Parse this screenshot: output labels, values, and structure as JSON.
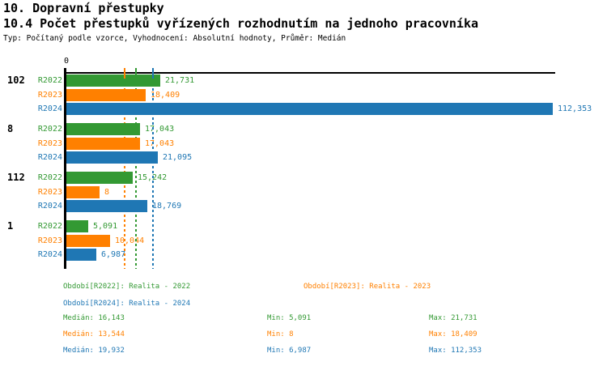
{
  "header": {
    "title": "10. Dopravní přestupky",
    "subtitle": "10.4 Počet přestupků vyřízených rozhodnutím na jednoho pracovníka",
    "meta": "Typ: Počítaný podle vzorce, Vyhodnocení: Absolutní hodnoty, Průměr: Medián"
  },
  "chart_data": {
    "type": "bar",
    "orientation": "horizontal",
    "x_axis": {
      "origin_label": "0",
      "min": 0,
      "max_value_shown": 112353,
      "gridlines": "median markers only"
    },
    "categories": [
      "102",
      "8",
      "112",
      "1"
    ],
    "series": [
      {
        "name": "R2022",
        "color": "#339933",
        "values": [
          21731,
          17043,
          15242,
          5091
        ],
        "labels": [
          "21,731",
          "17,043",
          "15,242",
          "5,091"
        ],
        "median": 16143,
        "min": 5091,
        "max": 21731
      },
      {
        "name": "R2023",
        "color": "#FF8000",
        "values": [
          18409,
          17043,
          8,
          10044
        ],
        "labels": [
          "18,409",
          "17,043",
          "8",
          "10,044"
        ],
        "median": 13544,
        "min": 8,
        "max": 18409
      },
      {
        "name": "R2024",
        "color": "#1F77B4",
        "values": [
          112353,
          21095,
          18769,
          6987
        ],
        "labels": [
          "112,353",
          "21,095",
          "18,769",
          "6,987"
        ],
        "median": 19932,
        "min": 6987,
        "max": 112353
      }
    ],
    "median_lines": [
      {
        "series": "R2022",
        "value": 16143
      },
      {
        "series": "R2023",
        "value": 13544
      },
      {
        "series": "R2024",
        "value": 19932
      }
    ],
    "legend_position": "bottom"
  },
  "legend": {
    "items": [
      {
        "series": "R2022",
        "text": "Období[R2022]: Realita - 2022"
      },
      {
        "series": "R2023",
        "text": "Období[R2023]: Realita - 2023"
      },
      {
        "series": "R2024",
        "text": "Období[R2024]: Realita - 2024"
      }
    ]
  },
  "stats": {
    "rows": [
      {
        "series": "R2022",
        "median": "Medián: 16,143",
        "min": "Min: 5,091",
        "max": "Max: 21,731"
      },
      {
        "series": "R2023",
        "median": "Medián: 13,544",
        "min": "Min: 8",
        "max": "Max: 18,409"
      },
      {
        "series": "R2024",
        "median": "Medián: 19,932",
        "min": "Min: 6,987",
        "max": "Max: 112,353"
      }
    ]
  }
}
